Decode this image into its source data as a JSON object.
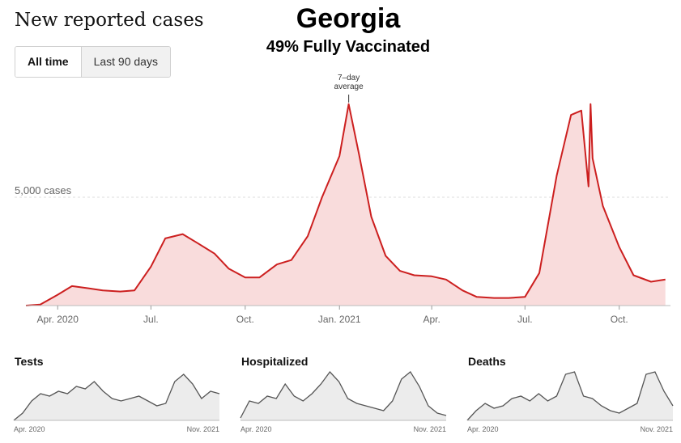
{
  "header": {
    "title": "New reported cases",
    "state_name": "Georgia",
    "vaccination_text": "49% Fully Vaccinated"
  },
  "toggle": {
    "active_label": "All time",
    "inactive_label": "Last 90 days"
  },
  "colors": {
    "line": "#cc1f1f",
    "area": "#f9dcdc",
    "small_line": "#555555",
    "small_area": "#ececec",
    "grid": "#dddddd",
    "axis_text": "#666666"
  },
  "chart_data": [
    {
      "type": "area",
      "title": "New reported cases",
      "annotation": "7–day\naverage",
      "y_gridline": {
        "value": 5000,
        "label": "5,000 cases"
      },
      "ylim": [
        0,
        10000
      ],
      "x_ticks": [
        "Apr. 2020",
        "Jul.",
        "Oct.",
        "Jan. 2021",
        "Apr.",
        "Jul.",
        "Oct."
      ],
      "x": [
        "2020-03-01",
        "2020-03-15",
        "2020-04-01",
        "2020-04-15",
        "2020-05-01",
        "2020-05-15",
        "2020-06-01",
        "2020-06-15",
        "2020-07-01",
        "2020-07-15",
        "2020-08-01",
        "2020-08-15",
        "2020-09-01",
        "2020-09-15",
        "2020-10-01",
        "2020-10-15",
        "2020-11-01",
        "2020-11-15",
        "2020-12-01",
        "2020-12-15",
        "2021-01-01",
        "2021-01-10",
        "2021-01-20",
        "2021-02-01",
        "2021-02-15",
        "2021-03-01",
        "2021-03-15",
        "2021-04-01",
        "2021-04-15",
        "2021-05-01",
        "2021-05-15",
        "2021-06-01",
        "2021-06-15",
        "2021-07-01",
        "2021-07-15",
        "2021-08-01",
        "2021-08-15",
        "2021-08-25",
        "2021-09-01",
        "2021-09-03",
        "2021-09-05",
        "2021-09-15",
        "2021-10-01",
        "2021-10-15",
        "2021-11-01",
        "2021-11-15"
      ],
      "series": [
        {
          "values": [
            0,
            50,
            500,
            900,
            800,
            700,
            650,
            700,
            1800,
            3100,
            3300,
            2900,
            2400,
            1700,
            1300,
            1300,
            1900,
            2100,
            3200,
            5000,
            6900,
            9300,
            7000,
            4100,
            2300,
            1600,
            1400,
            1350,
            1200,
            700,
            400,
            350,
            350,
            400,
            1500,
            6000,
            8800,
            9000,
            5500,
            9300,
            6800,
            4600,
            2700,
            1400,
            1100,
            1200
          ]
        }
      ]
    },
    {
      "type": "area",
      "title": "Tests",
      "x_ticks": [
        "Apr. 2020",
        "Nov. 2021"
      ],
      "values": [
        0,
        15,
        40,
        55,
        50,
        60,
        55,
        70,
        65,
        80,
        60,
        45,
        40,
        45,
        50,
        40,
        30,
        35,
        80,
        95,
        75,
        45,
        60,
        55
      ]
    },
    {
      "type": "area",
      "title": "Hospitalized",
      "x_ticks": [
        "Apr. 2020",
        "Nov. 2021"
      ],
      "values": [
        5,
        40,
        35,
        50,
        45,
        75,
        50,
        40,
        55,
        75,
        100,
        80,
        45,
        35,
        30,
        25,
        20,
        40,
        85,
        100,
        70,
        30,
        15,
        10
      ]
    },
    {
      "type": "area",
      "title": "Deaths",
      "x_ticks": [
        "Apr. 2020",
        "Nov. 2021"
      ],
      "values": [
        0,
        20,
        35,
        25,
        30,
        45,
        50,
        40,
        55,
        40,
        50,
        95,
        100,
        50,
        45,
        30,
        20,
        15,
        25,
        35,
        95,
        100,
        60,
        30
      ]
    }
  ]
}
